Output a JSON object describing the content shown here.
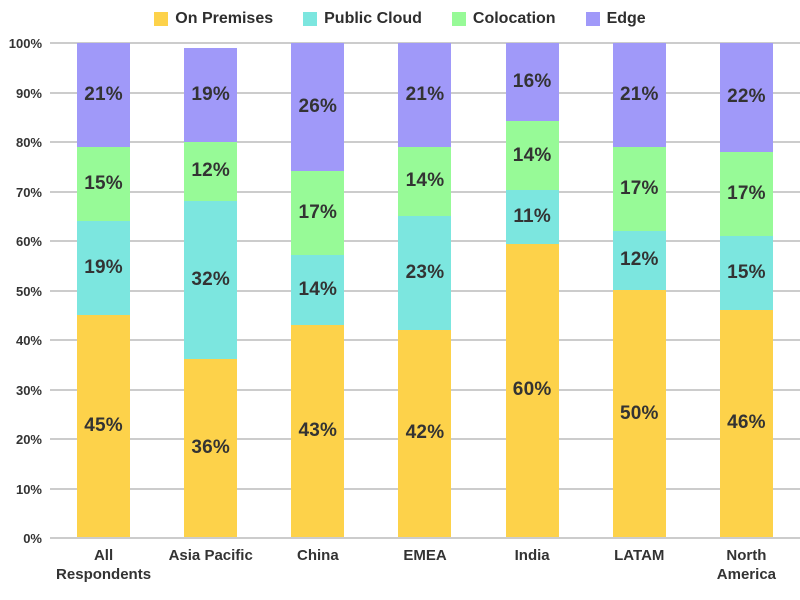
{
  "chart_data": {
    "type": "bar",
    "stacked": true,
    "orientation": "vertical",
    "title": "",
    "xlabel": "",
    "ylabel": "",
    "legend_position": "top",
    "grid": true,
    "background_color": "#ffffff",
    "gridline_color": "#cccccc",
    "text_color": "#333333",
    "categories": [
      "All Respondents",
      "Asia Pacific",
      "China",
      "EMEA",
      "India",
      "LATAM",
      "North America"
    ],
    "series": [
      {
        "name": "On Premises",
        "color": "#FDD24A",
        "values": [
          45,
          36,
          43,
          42,
          60,
          50,
          46
        ],
        "labels": [
          "45%",
          "36%",
          "43%",
          "42%",
          "60%",
          "50%",
          "46%"
        ]
      },
      {
        "name": "Public Cloud",
        "color": "#7CE6DF",
        "values": [
          19,
          32,
          14,
          23,
          11,
          12,
          15
        ],
        "labels": [
          "19%",
          "32%",
          "14%",
          "23%",
          "11%",
          "12%",
          "15%"
        ]
      },
      {
        "name": "Colocation",
        "color": "#97FA97",
        "values": [
          15,
          12,
          17,
          14,
          14,
          17,
          17
        ],
        "labels": [
          "15%",
          "12%",
          "17%",
          "14%",
          "14%",
          "17%",
          "17%"
        ]
      },
      {
        "name": "Edge",
        "color": "#A099F9",
        "values": [
          21,
          19,
          26,
          21,
          16,
          21,
          22
        ],
        "labels": [
          "21%",
          "19%",
          "26%",
          "21%",
          "16%",
          "21%",
          "22%"
        ]
      }
    ],
    "y_axis": {
      "min": 0,
      "max": 100,
      "tick_step": 10,
      "ticks": [
        "0%",
        "10%",
        "20%",
        "30%",
        "40%",
        "50%",
        "60%",
        "70%",
        "80%",
        "90%",
        "100%"
      ]
    }
  }
}
